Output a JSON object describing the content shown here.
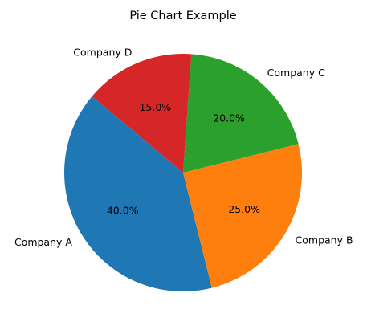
{
  "chart_data": {
    "type": "pie",
    "title": "Pie Chart Example",
    "categories": [
      "Company A",
      "Company B",
      "Company C",
      "Company D"
    ],
    "values": [
      40.0,
      25.0,
      20.0,
      15.0
    ],
    "percent_labels": [
      "40.0%",
      "25.0%",
      "20.0%",
      "15.0%"
    ],
    "start_angle_deg": 140,
    "direction": "counterclockwise",
    "colors": [
      "#1f77b4",
      "#ff7f0e",
      "#2ca02c",
      "#d62728"
    ]
  }
}
